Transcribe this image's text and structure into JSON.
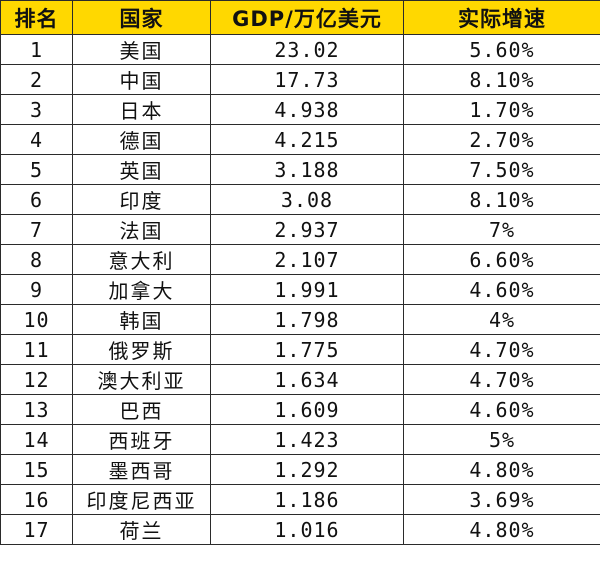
{
  "headers": {
    "rank": "排名",
    "country": "国家",
    "gdp": "GDP/万亿美元",
    "growth": "实际增速"
  },
  "rows": [
    {
      "rank": "1",
      "country": "美国",
      "gdp": "23.02",
      "growth": "5.60%"
    },
    {
      "rank": "2",
      "country": "中国",
      "gdp": "17.73",
      "growth": "8.10%"
    },
    {
      "rank": "3",
      "country": "日本",
      "gdp": "4.938",
      "growth": "1.70%"
    },
    {
      "rank": "4",
      "country": "德国",
      "gdp": "4.215",
      "growth": "2.70%"
    },
    {
      "rank": "5",
      "country": "英国",
      "gdp": "3.188",
      "growth": "7.50%"
    },
    {
      "rank": "6",
      "country": "印度",
      "gdp": "3.08",
      "growth": "8.10%"
    },
    {
      "rank": "7",
      "country": "法国",
      "gdp": "2.937",
      "growth": "7%"
    },
    {
      "rank": "8",
      "country": "意大利",
      "gdp": "2.107",
      "growth": "6.60%"
    },
    {
      "rank": "9",
      "country": "加拿大",
      "gdp": "1.991",
      "growth": "4.60%"
    },
    {
      "rank": "10",
      "country": "韩国",
      "gdp": "1.798",
      "growth": "4%"
    },
    {
      "rank": "11",
      "country": "俄罗斯",
      "gdp": "1.775",
      "growth": "4.70%"
    },
    {
      "rank": "12",
      "country": "澳大利亚",
      "gdp": "1.634",
      "growth": "4.70%"
    },
    {
      "rank": "13",
      "country": "巴西",
      "gdp": "1.609",
      "growth": "4.60%"
    },
    {
      "rank": "14",
      "country": "西班牙",
      "gdp": "1.423",
      "growth": "5%"
    },
    {
      "rank": "15",
      "country": "墨西哥",
      "gdp": "1.292",
      "growth": "4.80%"
    },
    {
      "rank": "16",
      "country": "印度尼西亚",
      "gdp": "1.186",
      "growth": "3.69%"
    },
    {
      "rank": "17",
      "country": "荷兰",
      "gdp": "1.016",
      "growth": "4.80%"
    }
  ],
  "colors": {
    "header_background": "#ffd800",
    "border": "#2b2b2b"
  }
}
